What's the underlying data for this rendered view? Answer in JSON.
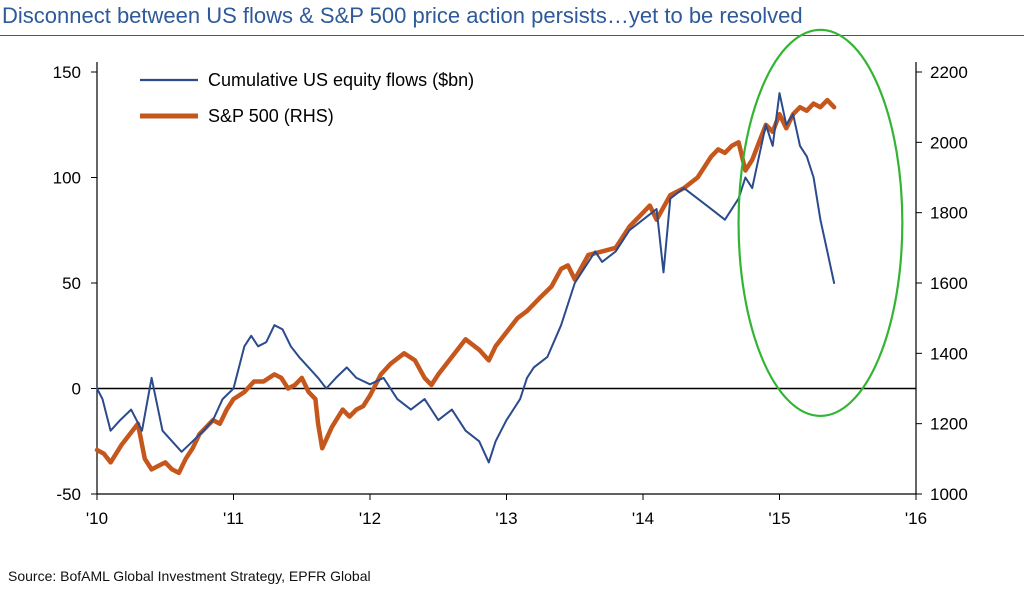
{
  "title": "Disconnect between US flows & S&P 500 price action persists…yet to be resolved",
  "source": "Source: BofAML Global Investment Strategy, EPFR Global",
  "colors": {
    "flows": "#2b4b8c",
    "spx": "#c5571c",
    "highlight": "#33b533",
    "title": "#2e5a9a"
  },
  "chart_data": {
    "type": "line",
    "x_ticks": [
      "'10",
      "'11",
      "'12",
      "'13",
      "'14",
      "'15",
      "'16"
    ],
    "xlim": [
      2010,
      2016
    ],
    "ylim_left": [
      -50,
      150
    ],
    "ylim_right": [
      1000,
      2200
    ],
    "y_ticks_left": [
      "-50",
      "0",
      "50",
      "100",
      "150"
    ],
    "y_ticks_right": [
      "1000",
      "1200",
      "1400",
      "1600",
      "1800",
      "2000",
      "2200"
    ],
    "legend": {
      "placement": "top-left"
    },
    "annotations": [
      {
        "type": "ellipse",
        "label": "",
        "x_range": [
          2014.7,
          2015.9
        ],
        "y_range_left": [
          -13,
          170
        ]
      }
    ],
    "series": [
      {
        "name": "Cumulative US equity flows ($bn)",
        "axis": "left",
        "x": [
          2010.0,
          2010.04,
          2010.1,
          2010.17,
          2010.25,
          2010.33,
          2010.4,
          2010.48,
          2010.55,
          2010.62,
          2010.7,
          2010.78,
          2010.85,
          2010.92,
          2011.0,
          2011.08,
          2011.13,
          2011.18,
          2011.24,
          2011.3,
          2011.36,
          2011.42,
          2011.48,
          2011.55,
          2011.62,
          2011.68,
          2011.75,
          2011.83,
          2011.9,
          2012.0,
          2012.1,
          2012.2,
          2012.3,
          2012.4,
          2012.5,
          2012.6,
          2012.7,
          2012.8,
          2012.87,
          2012.92,
          2013.0,
          2013.1,
          2013.15,
          2013.2,
          2013.3,
          2013.4,
          2013.5,
          2013.6,
          2013.65,
          2013.7,
          2013.8,
          2013.9,
          2014.0,
          2014.1,
          2014.15,
          2014.2,
          2014.3,
          2014.4,
          2014.5,
          2014.6,
          2014.7,
          2014.75,
          2014.8,
          2014.85,
          2014.9,
          2014.95,
          2015.0,
          2015.05,
          2015.1,
          2015.15,
          2015.2,
          2015.25,
          2015.3,
          2015.35,
          2015.4
        ],
        "values": [
          0,
          -5,
          -20,
          -15,
          -10,
          -20,
          5,
          -20,
          -25,
          -30,
          -25,
          -20,
          -15,
          -5,
          0,
          20,
          25,
          20,
          22,
          30,
          28,
          20,
          15,
          10,
          5,
          0,
          5,
          10,
          5,
          2,
          5,
          -5,
          -10,
          -5,
          -15,
          -10,
          -20,
          -25,
          -35,
          -25,
          -15,
          -5,
          5,
          10,
          15,
          30,
          50,
          60,
          65,
          60,
          65,
          75,
          80,
          85,
          55,
          90,
          95,
          90,
          85,
          80,
          90,
          100,
          95,
          110,
          125,
          115,
          140,
          125,
          130,
          115,
          110,
          100,
          80,
          65,
          50
        ]
      },
      {
        "name": "S&P 500 (RHS)",
        "axis": "right",
        "x": [
          2010.0,
          2010.05,
          2010.1,
          2010.18,
          2010.25,
          2010.3,
          2010.35,
          2010.4,
          2010.45,
          2010.5,
          2010.55,
          2010.6,
          2010.65,
          2010.7,
          2010.75,
          2010.8,
          2010.85,
          2010.9,
          2010.95,
          2011.0,
          2011.08,
          2011.15,
          2011.22,
          2011.3,
          2011.35,
          2011.4,
          2011.45,
          2011.5,
          2011.55,
          2011.6,
          2011.62,
          2011.65,
          2011.72,
          2011.8,
          2011.85,
          2011.9,
          2011.95,
          2012.0,
          2012.08,
          2012.15,
          2012.25,
          2012.33,
          2012.4,
          2012.45,
          2012.5,
          2012.6,
          2012.7,
          2012.8,
          2012.87,
          2012.92,
          2013.0,
          2013.08,
          2013.15,
          2013.25,
          2013.33,
          2013.4,
          2013.45,
          2013.5,
          2013.6,
          2013.7,
          2013.8,
          2013.9,
          2014.0,
          2014.05,
          2014.1,
          2014.2,
          2014.3,
          2014.4,
          2014.5,
          2014.55,
          2014.6,
          2014.65,
          2014.7,
          2014.75,
          2014.8,
          2014.85,
          2014.9,
          2014.95,
          2015.0,
          2015.05,
          2015.1,
          2015.15,
          2015.2,
          2015.25,
          2015.3,
          2015.35,
          2015.4
        ],
        "values": [
          1125,
          1115,
          1090,
          1140,
          1175,
          1200,
          1100,
          1070,
          1080,
          1090,
          1070,
          1060,
          1100,
          1130,
          1170,
          1190,
          1210,
          1200,
          1240,
          1270,
          1290,
          1320,
          1320,
          1340,
          1330,
          1300,
          1310,
          1330,
          1290,
          1270,
          1200,
          1130,
          1190,
          1240,
          1220,
          1240,
          1250,
          1280,
          1340,
          1370,
          1400,
          1380,
          1330,
          1310,
          1340,
          1390,
          1440,
          1410,
          1380,
          1420,
          1460,
          1500,
          1520,
          1560,
          1590,
          1640,
          1650,
          1610,
          1680,
          1690,
          1700,
          1760,
          1800,
          1820,
          1780,
          1850,
          1870,
          1900,
          1960,
          1980,
          1970,
          1990,
          2000,
          1920,
          1950,
          2000,
          2050,
          2030,
          2080,
          2040,
          2080,
          2100,
          2090,
          2110,
          2100,
          2120,
          2100
        ]
      }
    ]
  }
}
